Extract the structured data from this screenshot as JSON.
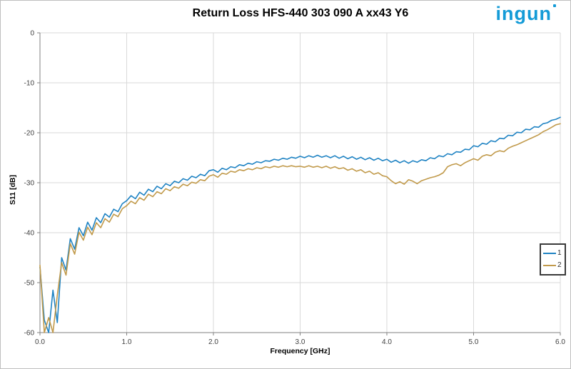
{
  "page": {
    "background": "#ffffff",
    "border_color": "#bfbfbf"
  },
  "logo": {
    "text": "ingun",
    "color": "#149BD7"
  },
  "chart_data": {
    "type": "line",
    "title": "Return Loss HFS-440 303 090 A xx43 Y6",
    "xlabel": "Frequency [GHz]",
    "ylabel": "S11 [dB]",
    "xlim": [
      0,
      6
    ],
    "ylim": [
      -60,
      0
    ],
    "xticks": [
      0,
      1,
      2,
      3,
      4,
      5,
      6
    ],
    "xtick_labels": [
      "0.0",
      "1.0",
      "2.0",
      "3.0",
      "4.0",
      "5.0",
      "6.0"
    ],
    "yticks": [
      0,
      -10,
      -20,
      -30,
      -40,
      -50,
      -60
    ],
    "ytick_labels": [
      "0",
      "-10",
      "-20",
      "-30",
      "-40",
      "-50",
      "-60"
    ],
    "grid": true,
    "legend_position": "right-middle",
    "colors": {
      "grid": "#d9d9d9",
      "axis": "#808080",
      "tick_text": "#3f3f3f"
    },
    "x_start": 0,
    "x_step": 0.05,
    "series": [
      {
        "name": "1",
        "color": "#1F83C3",
        "values": [
          -46.9,
          -57.5,
          -60,
          -51.5,
          -58,
          -45,
          -47.5,
          -41.2,
          -43.3,
          -39,
          -40.6,
          -37.9,
          -39.5,
          -37,
          -38,
          -36.2,
          -36.9,
          -35.3,
          -35.8,
          -34.2,
          -33.6,
          -32.6,
          -33.2,
          -31.9,
          -32.5,
          -31.3,
          -31.8,
          -30.7,
          -31.2,
          -30.2,
          -30.6,
          -29.7,
          -30,
          -29.2,
          -29.5,
          -28.7,
          -29,
          -28.3,
          -28.6,
          -27.6,
          -27.4,
          -27.9,
          -27.1,
          -27.4,
          -26.8,
          -27,
          -26.4,
          -26.6,
          -26.1,
          -26.3,
          -25.8,
          -26,
          -25.6,
          -25.7,
          -25.3,
          -25.5,
          -25.1,
          -25.3,
          -24.9,
          -25.1,
          -24.7,
          -25,
          -24.6,
          -24.9,
          -24.5,
          -24.9,
          -24.6,
          -25,
          -24.6,
          -25.1,
          -24.7,
          -25.2,
          -24.8,
          -25.3,
          -24.9,
          -25.4,
          -25,
          -25.5,
          -25.1,
          -25.6,
          -25.3,
          -25.9,
          -25.5,
          -26,
          -25.6,
          -26.1,
          -25.6,
          -25.9,
          -25.4,
          -25.6,
          -25,
          -25.2,
          -24.6,
          -24.8,
          -24.2,
          -24.4,
          -23.8,
          -23.9,
          -23.3,
          -23.4,
          -22.6,
          -22.8,
          -22.1,
          -22.3,
          -21.6,
          -21.8,
          -21.1,
          -21.2,
          -20.5,
          -20.6,
          -19.9,
          -20,
          -19.3,
          -19.4,
          -18.8,
          -18.9,
          -18.2,
          -18,
          -17.5,
          -17.3,
          -16.9
        ]
      },
      {
        "name": "2",
        "color": "#C19A4B",
        "values": [
          -46.5,
          -60,
          -57,
          -60,
          -52.5,
          -46,
          -48.5,
          -42.2,
          -44.3,
          -39.9,
          -41.5,
          -38.9,
          -40.4,
          -38,
          -39,
          -37.2,
          -37.9,
          -36.3,
          -36.8,
          -35.2,
          -34.6,
          -33.7,
          -34.2,
          -33,
          -33.5,
          -32.3,
          -32.8,
          -31.8,
          -32.2,
          -31.2,
          -31.6,
          -30.8,
          -31.1,
          -30.3,
          -30.6,
          -29.9,
          -30.1,
          -29.4,
          -29.6,
          -28.7,
          -28.4,
          -28.9,
          -28.1,
          -28.3,
          -27.7,
          -27.9,
          -27.4,
          -27.6,
          -27.2,
          -27.4,
          -27,
          -27.2,
          -26.8,
          -27,
          -26.7,
          -26.9,
          -26.6,
          -26.8,
          -26.6,
          -26.8,
          -26.7,
          -26.9,
          -26.6,
          -26.9,
          -26.7,
          -27,
          -26.7,
          -27.1,
          -26.8,
          -27.2,
          -27,
          -27.5,
          -27.2,
          -27.7,
          -27.4,
          -28,
          -27.7,
          -28.3,
          -28,
          -28.6,
          -28.8,
          -29.6,
          -30.2,
          -29.8,
          -30.3,
          -29.4,
          -29.7,
          -30.2,
          -29.6,
          -29.3,
          -29,
          -28.8,
          -28.5,
          -28,
          -26.8,
          -26.4,
          -26.2,
          -26.6,
          -26,
          -25.6,
          -25.2,
          -25.5,
          -24.7,
          -24.4,
          -24.6,
          -23.9,
          -23.6,
          -23.8,
          -23.1,
          -22.7,
          -22.4,
          -22,
          -21.6,
          -21.2,
          -20.8,
          -20.4,
          -19.8,
          -19.4,
          -18.9,
          -18.4,
          -18.2
        ]
      }
    ]
  }
}
